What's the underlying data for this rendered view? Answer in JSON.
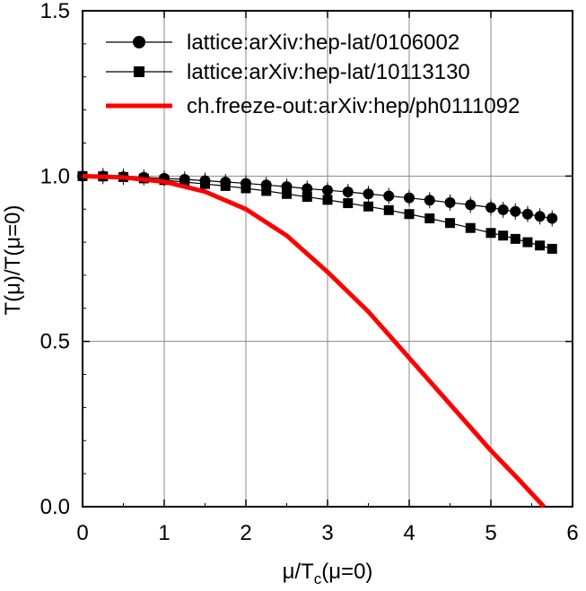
{
  "chart_data": {
    "type": "line",
    "xlabel_main": "μ/T",
    "xlabel_sub": "c",
    "xlabel_tail": "(μ=0)",
    "ylabel": "T(μ)/T(μ=0)",
    "xlim": [
      0,
      6
    ],
    "ylim": [
      0,
      1.5
    ],
    "x_ticks": [
      0,
      1,
      2,
      3,
      4,
      5,
      6
    ],
    "x_tick_labels": [
      "0",
      "1",
      "2",
      "3",
      "4",
      "5",
      "6"
    ],
    "y_ticks": [
      0,
      0.5,
      1.0,
      1.5
    ],
    "y_tick_labels": [
      "0.0",
      "0.5",
      "1.0",
      "1.5"
    ],
    "legend_position": "top-right",
    "series": [
      {
        "name": "lattice:arXiv:hep-lat/0106002",
        "marker": "circle",
        "color": "#000000",
        "x": [
          0,
          0.25,
          0.5,
          0.75,
          1.0,
          1.25,
          1.5,
          1.75,
          2.0,
          2.25,
          2.5,
          2.75,
          3.0,
          3.25,
          3.5,
          3.75,
          4.0,
          4.25,
          4.5,
          4.75,
          5.0,
          5.15,
          5.3,
          5.45,
          5.6,
          5.75
        ],
        "y": [
          1.0,
          1.0,
          0.998,
          0.996,
          0.993,
          0.99,
          0.986,
          0.982,
          0.978,
          0.973,
          0.968,
          0.962,
          0.957,
          0.952,
          0.946,
          0.94,
          0.934,
          0.927,
          0.92,
          0.913,
          0.905,
          0.898,
          0.893,
          0.885,
          0.878,
          0.872
        ]
      },
      {
        "name": "lattice:arXiv:hep-lat/10113130",
        "marker": "square",
        "color": "#000000",
        "x": [
          0,
          0.25,
          0.5,
          0.75,
          1.0,
          1.25,
          1.5,
          1.75,
          2.0,
          2.25,
          2.5,
          2.75,
          3.0,
          3.25,
          3.5,
          3.75,
          4.0,
          4.25,
          4.5,
          4.75,
          5.0,
          5.15,
          5.3,
          5.45,
          5.6,
          5.75
        ],
        "y": [
          1.0,
          0.999,
          0.997,
          0.993,
          0.988,
          0.982,
          0.976,
          0.97,
          0.963,
          0.955,
          0.946,
          0.937,
          0.928,
          0.918,
          0.908,
          0.897,
          0.885,
          0.872,
          0.858,
          0.843,
          0.828,
          0.82,
          0.81,
          0.8,
          0.79,
          0.78
        ]
      },
      {
        "name": "ch.freeze-out:arXiv:hep/ph0111092",
        "marker": "none",
        "color": "#ff0000",
        "x": [
          0,
          0.5,
          1.0,
          1.5,
          2.0,
          2.5,
          3.0,
          3.5,
          4.0,
          4.5,
          5.0,
          5.35,
          5.65
        ],
        "y": [
          1.0,
          0.996,
          0.983,
          0.953,
          0.9,
          0.82,
          0.71,
          0.59,
          0.45,
          0.31,
          0.17,
          0.08,
          0.0
        ]
      }
    ]
  }
}
